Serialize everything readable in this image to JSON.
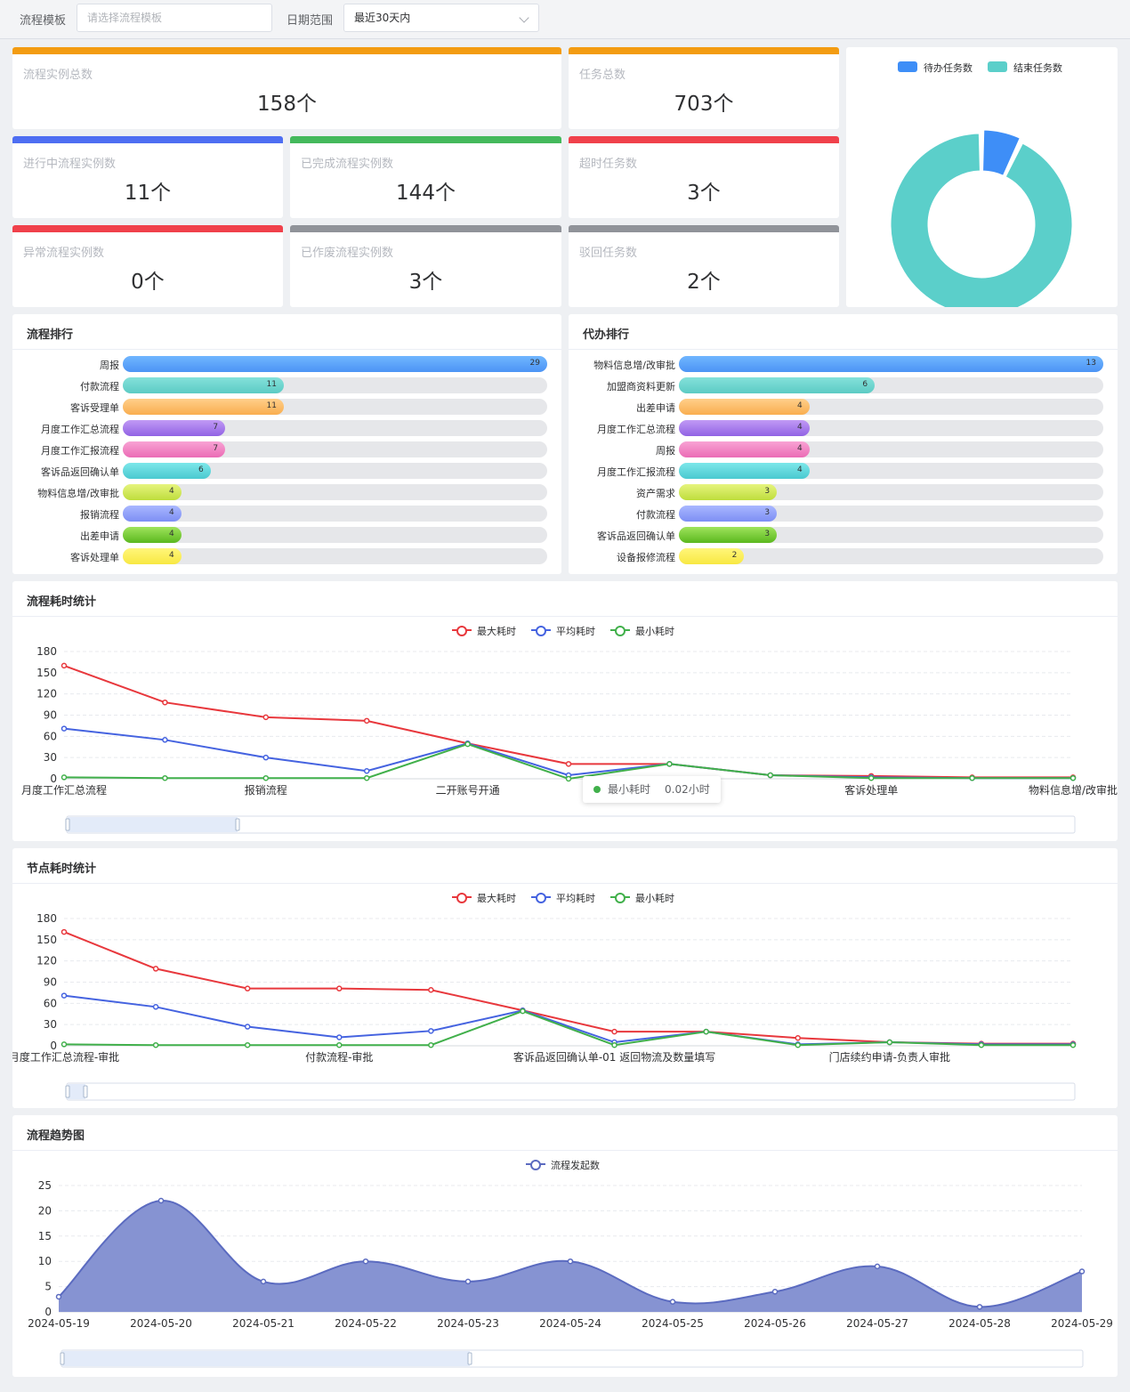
{
  "filters": {
    "template_label": "流程模板",
    "template_placeholder": "请选择流程模板",
    "date_label": "日期范围",
    "date_value": "最近30天内"
  },
  "stats": [
    {
      "label": "流程实例总数",
      "value": "158个",
      "color": "#f39c12"
    },
    {
      "label": "任务总数",
      "value": "703个",
      "color": "#f39c12"
    },
    {
      "label": "进行中流程实例数",
      "value": "11个",
      "color": "#4e6ef2"
    },
    {
      "label": "已完成流程实例数",
      "value": "144个",
      "color": "#44b95c"
    },
    {
      "label": "超时任务数",
      "value": "3个",
      "color": "#f0414b"
    },
    {
      "label": "异常流程实例数",
      "value": "0个",
      "color": "#f0414b"
    },
    {
      "label": "已作废流程实例数",
      "value": "3个",
      "color": "#909399"
    },
    {
      "label": "驳回任务数",
      "value": "2个",
      "color": "#909399"
    }
  ],
  "panels": {
    "process_rank": "流程排行",
    "proxy_rank": "代办排行",
    "process_time": "流程耗时统计",
    "node_time": "节点耗时统计",
    "trend": "流程趋势图"
  },
  "tooltip": {
    "label": "最小耗时",
    "value": "0.02小时",
    "color": "#41b04b"
  },
  "chart_data": [
    {
      "type": "pie",
      "variant": "donut",
      "legend_position": "top",
      "labels": [
        "待办任务数",
        "结束任务数"
      ],
      "values": [
        11,
        144
      ],
      "colors": [
        "#3e8ef7",
        "#5bcfca"
      ]
    },
    {
      "type": "bar",
      "orientation": "horizontal",
      "title": "流程排行",
      "categories": [
        "周报",
        "付款流程",
        "客诉受理单",
        "月度工作汇总流程",
        "月度工作汇报流程",
        "客诉品返回确认单",
        "物料信息增/改审批",
        "报销流程",
        "出差申请",
        "客诉处理单"
      ],
      "values": [
        29,
        11,
        11,
        7,
        7,
        6,
        4,
        4,
        4,
        4
      ],
      "max": 29,
      "colors": [
        [
          "#70b6ff",
          "#4c94f5"
        ],
        [
          "#84e1da",
          "#5ccbc4"
        ],
        [
          "#ffcf8a",
          "#f9ad4f"
        ],
        [
          "#c19af5",
          "#9162e4"
        ],
        [
          "#f8a3d4",
          "#eb6bb5"
        ],
        [
          "#7ce7ea",
          "#4ac9d0"
        ],
        [
          "#e6f47e",
          "#bedd3c"
        ],
        [
          "#a9b8ff",
          "#7d8ef4"
        ],
        [
          "#9fe35c",
          "#5bb81e"
        ],
        [
          "#fff67a",
          "#f8e842"
        ]
      ]
    },
    {
      "type": "bar",
      "orientation": "horizontal",
      "title": "代办排行",
      "categories": [
        "物料信息增/改审批",
        "加盟商资料更新",
        "出差申请",
        "月度工作汇总流程",
        "周报",
        "月度工作汇报流程",
        "资产需求",
        "付款流程",
        "客诉品返回确认单",
        "设备报修流程"
      ],
      "values": [
        13,
        6,
        4,
        4,
        4,
        4,
        3,
        3,
        3,
        2
      ],
      "max": 13,
      "colors": [
        [
          "#70b6ff",
          "#4c94f5"
        ],
        [
          "#84e1da",
          "#5ccbc4"
        ],
        [
          "#ffcf8a",
          "#f9ad4f"
        ],
        [
          "#c19af5",
          "#9162e4"
        ],
        [
          "#f8a3d4",
          "#eb6bb5"
        ],
        [
          "#7ce7ea",
          "#4ac9d0"
        ],
        [
          "#e6f47e",
          "#bedd3c"
        ],
        [
          "#a9b8ff",
          "#7d8ef4"
        ],
        [
          "#9fe35c",
          "#5bb81e"
        ],
        [
          "#fff67a",
          "#f8e842"
        ]
      ]
    },
    {
      "type": "line",
      "title": "流程耗时统计",
      "ylim": [
        0,
        180
      ],
      "yticks": [
        0,
        30,
        60,
        90,
        120,
        150,
        180
      ],
      "xticklabels": [
        "月度工作汇总流程",
        "",
        "报销流程",
        "",
        "二开账号开通",
        "",
        "",
        "",
        "客诉处理单",
        "",
        "物料信息增/改审批"
      ],
      "series": [
        {
          "name": "最大耗时",
          "color": "#e8383d",
          "values": [
            160,
            108,
            87,
            82,
            50,
            21,
            21,
            5,
            4,
            2,
            2
          ]
        },
        {
          "name": "平均耗时",
          "color": "#4563e0",
          "values": [
            71,
            55,
            30,
            11,
            50,
            5,
            21,
            5,
            2,
            1,
            1
          ]
        },
        {
          "name": "最小耗时",
          "color": "#41b04b",
          "values": [
            2,
            1,
            1,
            1,
            49,
            0.02,
            21,
            5,
            1,
            1,
            1
          ]
        }
      ],
      "grid": true,
      "legend_position": "top-center"
    },
    {
      "type": "line",
      "title": "节点耗时统计",
      "ylim": [
        0,
        180
      ],
      "yticks": [
        0,
        30,
        60,
        90,
        120,
        150,
        180
      ],
      "xticklabels": [
        "月度工作汇总流程-审批",
        "",
        "",
        "付款流程-审批",
        "",
        "",
        "客诉品返回确认单-01 返回物流及数量填写",
        "",
        "",
        "门店续约申请-负责人审批",
        "",
        ""
      ],
      "series": [
        {
          "name": "最大耗时",
          "color": "#e8383d",
          "values": [
            161,
            109,
            81,
            81,
            79,
            50,
            20,
            20,
            11,
            5,
            3,
            3
          ]
        },
        {
          "name": "平均耗时",
          "color": "#4563e0",
          "values": [
            71,
            55,
            27,
            12,
            21,
            50,
            5,
            20,
            2,
            5,
            2,
            2
          ]
        },
        {
          "name": "最小耗时",
          "color": "#41b04b",
          "values": [
            2,
            1,
            1,
            1,
            1,
            49,
            1,
            20,
            1,
            5,
            1,
            1
          ]
        }
      ],
      "grid": true,
      "legend_position": "top-center"
    },
    {
      "type": "area",
      "title": "流程趋势图",
      "ylim": [
        0,
        25
      ],
      "yticks": [
        0,
        5,
        10,
        15,
        20,
        25
      ],
      "x": [
        "2024-05-19",
        "2024-05-20",
        "2024-05-21",
        "2024-05-22",
        "2024-05-23",
        "2024-05-24",
        "2024-05-25",
        "2024-05-26",
        "2024-05-27",
        "2024-05-28",
        "2024-05-29"
      ],
      "series": [
        {
          "name": "流程发起数",
          "color": "#5b6bc0",
          "fill": "#8693d2",
          "values": [
            3,
            22,
            6,
            10,
            6,
            10,
            2,
            4,
            9,
            1,
            8
          ]
        }
      ],
      "grid": true,
      "legend_position": "top-center"
    }
  ]
}
